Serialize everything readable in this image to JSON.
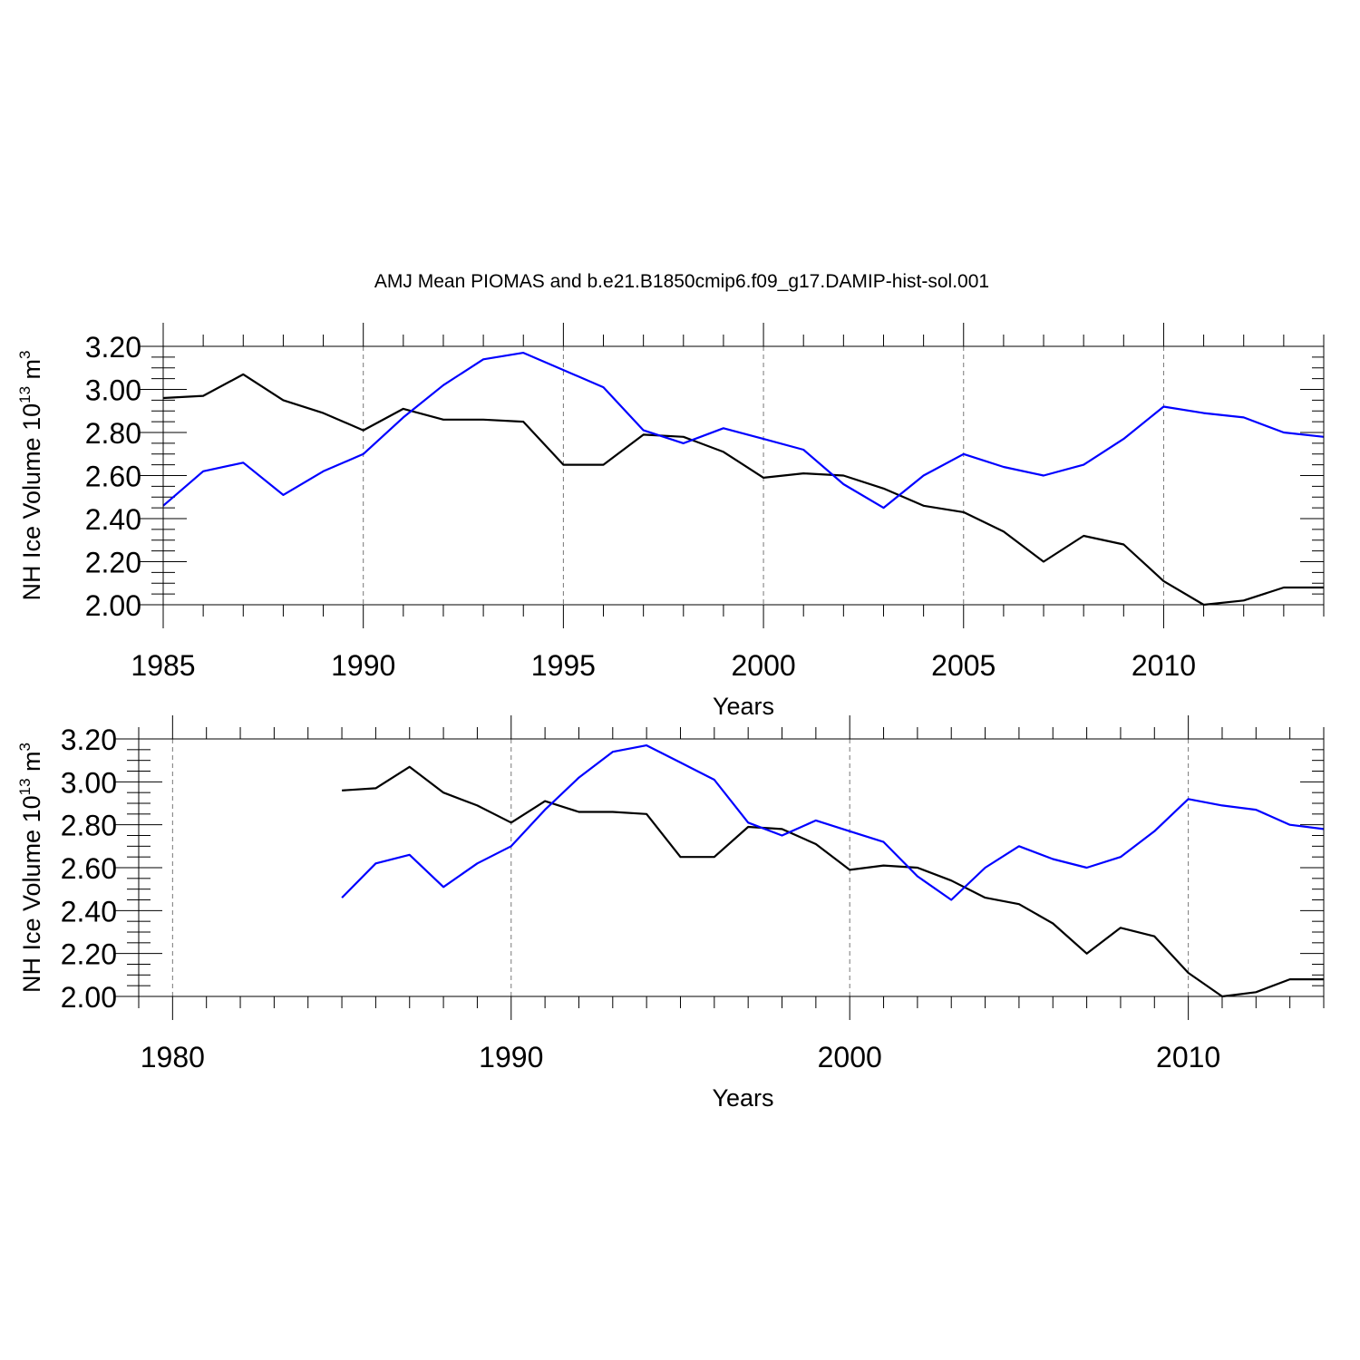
{
  "figure_title": "AMJ Mean PIOMAS and b.e21.B1850cmip6.f09_g17.DAMIP-hist-sol.001",
  "chart_data": [
    {
      "type": "line",
      "xlabel": "Years",
      "ylabel_main": "NH Ice Volume 10",
      "ylabel_sup": "13",
      "ylabel_unit": " m",
      "ylabel_unit_sup": "3",
      "xlim": [
        1985,
        2014
      ],
      "ylim": [
        2.0,
        3.2
      ],
      "x_ticks": [
        1985,
        1990,
        1995,
        2000,
        2005,
        2010
      ],
      "y_ticks": [
        "2.00",
        "2.20",
        "2.40",
        "2.60",
        "2.80",
        "3.00",
        "3.20"
      ],
      "grid": "vertical dashed at major x ticks",
      "x": [
        1985,
        1986,
        1987,
        1988,
        1989,
        1990,
        1991,
        1992,
        1993,
        1994,
        1995,
        1996,
        1997,
        1998,
        1999,
        2000,
        2001,
        2002,
        2003,
        2004,
        2005,
        2006,
        2007,
        2008,
        2009,
        2010,
        2011,
        2012,
        2013,
        2014
      ],
      "series": [
        {
          "color": "#000000",
          "values": [
            2.96,
            2.97,
            3.07,
            2.95,
            2.89,
            2.81,
            2.91,
            2.86,
            2.86,
            2.85,
            2.65,
            2.65,
            2.79,
            2.78,
            2.71,
            2.59,
            2.61,
            2.6,
            2.54,
            2.46,
            2.43,
            2.34,
            2.2,
            2.32,
            2.28,
            2.11,
            2.0,
            2.02,
            2.08,
            2.08
          ]
        },
        {
          "color": "#0000ff",
          "values": [
            2.46,
            2.62,
            2.66,
            2.51,
            2.62,
            2.7,
            2.87,
            3.02,
            3.14,
            3.17,
            3.09,
            3.01,
            2.81,
            2.75,
            2.82,
            2.77,
            2.72,
            2.56,
            2.45,
            2.6,
            2.7,
            2.64,
            2.6,
            2.65,
            2.77,
            2.92,
            2.89,
            2.87,
            2.8,
            2.78
          ]
        }
      ]
    },
    {
      "type": "line",
      "xlabel": "Years",
      "ylabel_main": "NH Ice Volume 10",
      "ylabel_sup": "13",
      "ylabel_unit": " m",
      "ylabel_unit_sup": "3",
      "xlim": [
        1979,
        2014
      ],
      "ylim": [
        2.0,
        3.2
      ],
      "x_ticks": [
        1980,
        1990,
        2000,
        2010
      ],
      "y_ticks": [
        "2.00",
        "2.20",
        "2.40",
        "2.60",
        "2.80",
        "3.00",
        "3.20"
      ],
      "grid": "vertical dashed at major x ticks",
      "x": [
        1985,
        1986,
        1987,
        1988,
        1989,
        1990,
        1991,
        1992,
        1993,
        1994,
        1995,
        1996,
        1997,
        1998,
        1999,
        2000,
        2001,
        2002,
        2003,
        2004,
        2005,
        2006,
        2007,
        2008,
        2009,
        2010,
        2011,
        2012,
        2013,
        2014
      ],
      "series": [
        {
          "color": "#000000",
          "values": [
            2.96,
            2.97,
            3.07,
            2.95,
            2.89,
            2.81,
            2.91,
            2.86,
            2.86,
            2.85,
            2.65,
            2.65,
            2.79,
            2.78,
            2.71,
            2.59,
            2.61,
            2.6,
            2.54,
            2.46,
            2.43,
            2.34,
            2.2,
            2.32,
            2.28,
            2.11,
            2.0,
            2.02,
            2.08,
            2.08
          ]
        },
        {
          "color": "#0000ff",
          "values": [
            2.46,
            2.62,
            2.66,
            2.51,
            2.62,
            2.7,
            2.87,
            3.02,
            3.14,
            3.17,
            3.09,
            3.01,
            2.81,
            2.75,
            2.82,
            2.77,
            2.72,
            2.56,
            2.45,
            2.6,
            2.7,
            2.64,
            2.6,
            2.65,
            2.77,
            2.92,
            2.89,
            2.87,
            2.8,
            2.78
          ]
        }
      ]
    }
  ]
}
